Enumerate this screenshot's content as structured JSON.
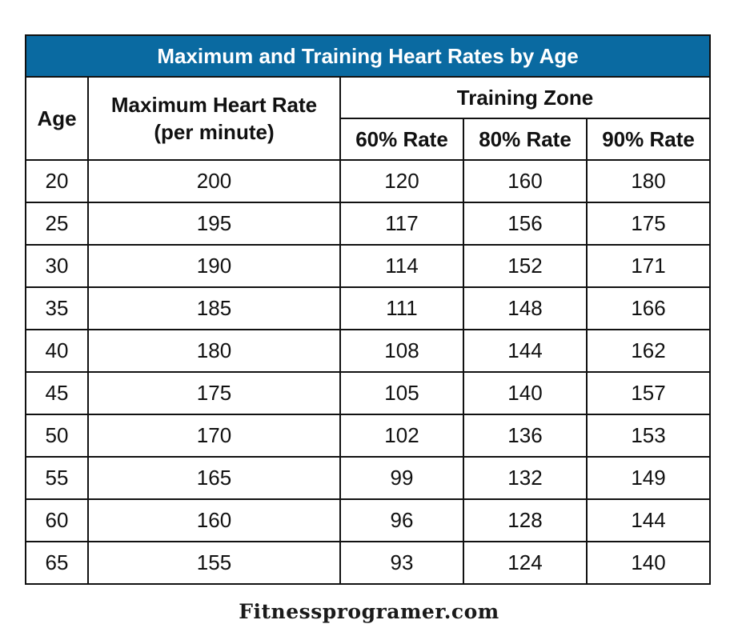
{
  "table": {
    "title": "Maximum and Training Heart Rates by Age",
    "colors": {
      "title_bg": "#0a6aa1",
      "title_text": "#ffffff",
      "border": "#111111"
    },
    "headers": {
      "age": "Age",
      "max_rate_line1": "Maximum Heart Rate",
      "max_rate_line2": "(per minute)",
      "training_zone": "Training Zone",
      "rate_60": "60% Rate",
      "rate_80": "80% Rate",
      "rate_90": "90% Rate"
    },
    "rows": [
      {
        "age": "20",
        "max": "200",
        "r60": "120",
        "r80": "160",
        "r90": "180"
      },
      {
        "age": "25",
        "max": "195",
        "r60": "117",
        "r80": "156",
        "r90": "175"
      },
      {
        "age": "30",
        "max": "190",
        "r60": "114",
        "r80": "152",
        "r90": "171"
      },
      {
        "age": "35",
        "max": "185",
        "r60": "111",
        "r80": "148",
        "r90": "166"
      },
      {
        "age": "40",
        "max": "180",
        "r60": "108",
        "r80": "144",
        "r90": "162"
      },
      {
        "age": "45",
        "max": "175",
        "r60": "105",
        "r80": "140",
        "r90": "157"
      },
      {
        "age": "50",
        "max": "170",
        "r60": "102",
        "r80": "136",
        "r90": "153"
      },
      {
        "age": "55",
        "max": "165",
        "r60": "99",
        "r80": "132",
        "r90": "149"
      },
      {
        "age": "60",
        "max": "160",
        "r60": "96",
        "r80": "128",
        "r90": "144"
      },
      {
        "age": "65",
        "max": "155",
        "r60": "93",
        "r80": "124",
        "r90": "140"
      }
    ]
  },
  "footer": {
    "text": "Fitnessprogramer.com"
  }
}
